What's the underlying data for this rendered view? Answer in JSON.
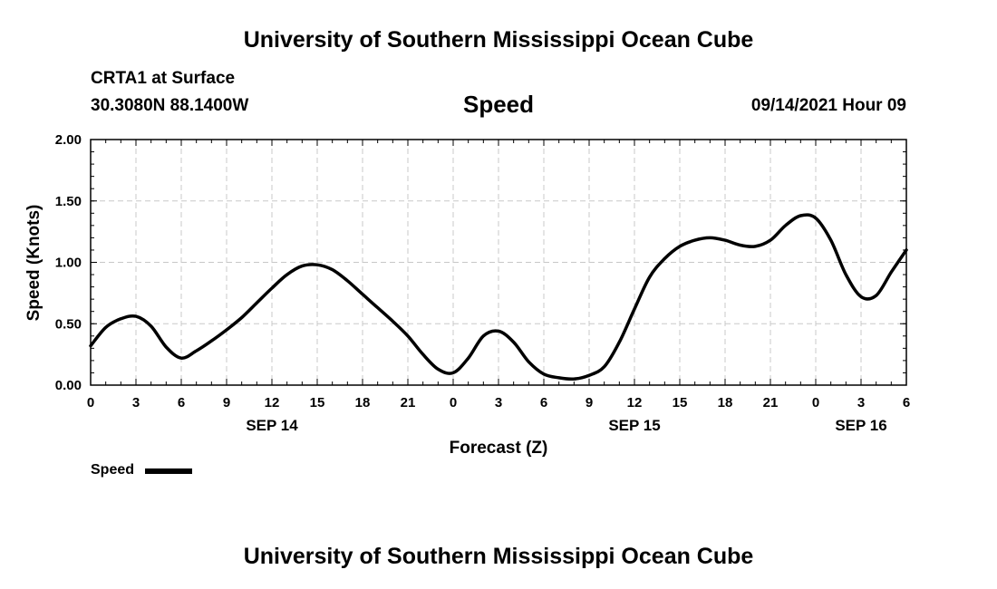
{
  "header": {
    "top_title": "University of Southern Mississippi Ocean Cube",
    "bottom_title": "University of Southern Mississippi Ocean Cube",
    "station": "CRTA1 at Surface",
    "coords": "30.3080N  88.1400W",
    "datetime": "09/14/2021 Hour 09"
  },
  "legend": {
    "label": "Speed"
  },
  "chart_data": {
    "type": "line",
    "title": "Speed",
    "xlabel": "Forecast (Z)",
    "ylabel": "Speed (Knots)",
    "xlim": [
      0,
      54
    ],
    "ylim": [
      0,
      2.0
    ],
    "yticks": [
      0.0,
      0.5,
      1.0,
      1.5,
      2.0
    ],
    "ytick_labels": [
      "0.00",
      "0.50",
      "1.00",
      "1.50",
      "2.00"
    ],
    "xticks": [
      0,
      3,
      6,
      9,
      12,
      15,
      18,
      21,
      24,
      27,
      30,
      33,
      36,
      39,
      42,
      45,
      48,
      51,
      54
    ],
    "xtick_labels": [
      "0",
      "3",
      "6",
      "9",
      "12",
      "15",
      "18",
      "21",
      "0",
      "3",
      "6",
      "9",
      "12",
      "15",
      "18",
      "21",
      "0",
      "3",
      "6"
    ],
    "date_labels": [
      {
        "x": 12,
        "label": "SEP 14"
      },
      {
        "x": 36,
        "label": "SEP 15"
      },
      {
        "x": 51,
        "label": "SEP 16"
      }
    ],
    "grid": true,
    "series": [
      {
        "name": "Speed",
        "color": "#000000",
        "x": [
          0,
          1,
          2,
          3,
          4,
          5,
          6,
          7,
          8,
          9,
          10,
          11,
          12,
          13,
          14,
          15,
          16,
          17,
          18,
          19,
          20,
          21,
          22,
          23,
          24,
          25,
          26,
          27,
          28,
          29,
          30,
          31,
          32,
          33,
          34,
          35,
          36,
          37,
          38,
          39,
          40,
          41,
          42,
          43,
          44,
          45,
          46,
          47,
          48,
          49,
          50,
          51,
          52,
          53,
          54
        ],
        "values": [
          0.32,
          0.47,
          0.54,
          0.56,
          0.48,
          0.31,
          0.22,
          0.28,
          0.36,
          0.45,
          0.55,
          0.67,
          0.79,
          0.9,
          0.97,
          0.98,
          0.94,
          0.85,
          0.74,
          0.63,
          0.52,
          0.4,
          0.25,
          0.13,
          0.1,
          0.22,
          0.4,
          0.44,
          0.35,
          0.19,
          0.09,
          0.06,
          0.05,
          0.08,
          0.15,
          0.35,
          0.62,
          0.88,
          1.03,
          1.13,
          1.18,
          1.2,
          1.18,
          1.14,
          1.13,
          1.18,
          1.3,
          1.38,
          1.36,
          1.18,
          0.9,
          0.72,
          0.73,
          0.92,
          1.1
        ]
      }
    ]
  }
}
